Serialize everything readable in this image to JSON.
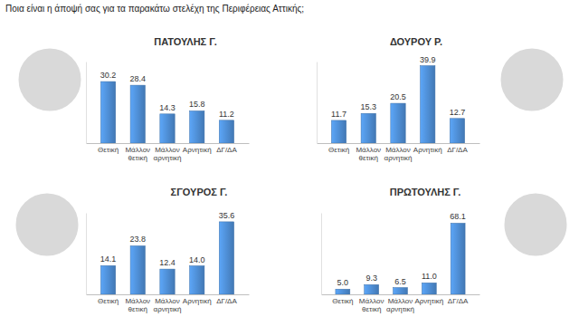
{
  "title": "Ποια είναι η άποψή σας για τα παρακάτω στελέχη της Περιφέρειας Αττικής;",
  "chart_data": [
    {
      "type": "bar",
      "title": "ΠΑΤΟΥΛΗΣ Γ.",
      "categories": [
        "Θετική",
        "Μάλλον θετική",
        "Μάλλον αρνητική",
        "Αρνητική",
        "ΔΓ/ΔΑ"
      ],
      "values": [
        30.2,
        28.4,
        14.3,
        15.8,
        11.2
      ],
      "value_labels": [
        "30.2",
        "28.4",
        "14.3",
        "15.8",
        "11.2"
      ],
      "color": "#4a86c8",
      "ylim": [
        0,
        40
      ],
      "data_labels": true,
      "tick_labels": "x"
    },
    {
      "type": "bar",
      "title": "ΔΟΥΡΟΥ Ρ.",
      "categories": [
        "Θετική",
        "Μάλλον θετική",
        "Μάλλον αρνητική",
        "Αρνητική",
        "ΔΓ/ΔΑ"
      ],
      "values": [
        11.7,
        15.3,
        20.5,
        39.9,
        12.7
      ],
      "value_labels": [
        "11.7",
        "15.3",
        "20.5",
        "39.9",
        "12.7"
      ],
      "color": "#4a86c8",
      "ylim": [
        0,
        42
      ],
      "data_labels": true,
      "tick_labels": "x"
    },
    {
      "type": "bar",
      "title": "ΣΓΟΥΡΟΣ Γ.",
      "categories": [
        "Θετική",
        "Μάλλον θετική",
        "Μάλλον αρνητική",
        "Αρνητική",
        "ΔΓ/ΔΑ"
      ],
      "values": [
        14.1,
        23.8,
        12.4,
        14.0,
        35.6
      ],
      "value_labels": [
        "14.1",
        "23.8",
        "12.4",
        "14.0",
        "35.6"
      ],
      "color": "#4a86c8",
      "ylim": [
        0,
        40
      ],
      "data_labels": true,
      "tick_labels": "x"
    },
    {
      "type": "bar",
      "title": "ΠΡΩΤΟΥΛΗΣ Γ.",
      "categories": [
        "Θετική",
        "Μάλλον θετική",
        "Μάλλον αρνητική",
        "Αρνητική",
        "ΔΓ/ΔΑ"
      ],
      "values": [
        5.0,
        9.3,
        6.5,
        11.0,
        68.1
      ],
      "value_labels": [
        "5.0",
        "9.3",
        "6.5",
        "11.0",
        "68.1"
      ],
      "color": "#4a86c8",
      "ylim": [
        0,
        78
      ],
      "data_labels": true,
      "tick_labels": "x"
    }
  ]
}
